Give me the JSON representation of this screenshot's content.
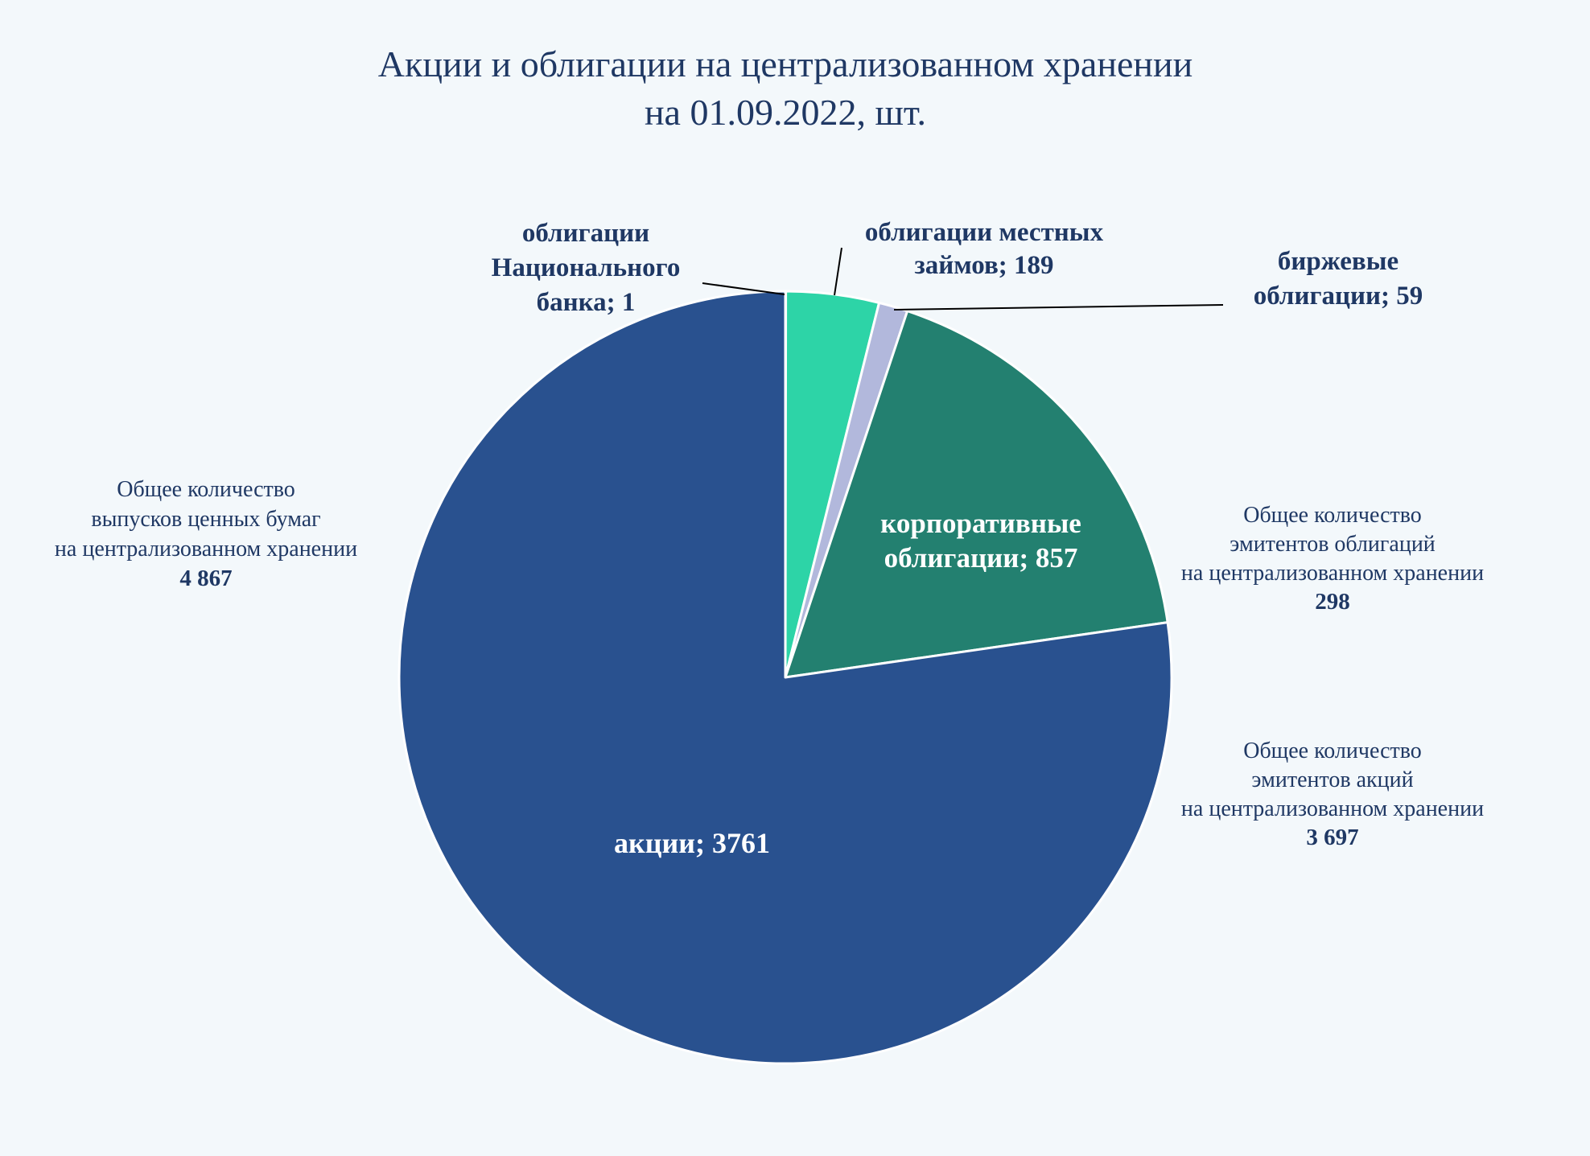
{
  "chart_data": {
    "type": "pie",
    "title_lines": [
      "Акции и облигации на централизованном хранении",
      "на 01.09.2022, шт."
    ],
    "slices": [
      {
        "key": "nb_bonds",
        "label_lines": [
          "облигации",
          "Национального",
          "банка; 1"
        ],
        "value": 1,
        "color": "#2dd4a7"
      },
      {
        "key": "local_bonds",
        "label_lines": [
          "облигации местных",
          "займов; 189"
        ],
        "value": 189,
        "color": "#2dd4a7"
      },
      {
        "key": "exchange_bonds",
        "label_lines": [
          "биржевые",
          "облигации; 59"
        ],
        "value": 59,
        "color": "#b2b8dc"
      },
      {
        "key": "corporate_bonds",
        "label_lines": [
          "корпоративные",
          "облигации; 857"
        ],
        "value": 857,
        "color": "#238070"
      },
      {
        "key": "shares",
        "label_lines": [
          "акции; 3761"
        ],
        "value": 3761,
        "color": "#29518f"
      }
    ],
    "annotations": [
      {
        "key": "total_issues",
        "lines": [
          "Общее количество",
          "выпусков ценных бумаг",
          "на централизованном хранении"
        ],
        "value": "4 867"
      },
      {
        "key": "bond_issuers",
        "lines": [
          "Общее количество",
          "эмитентов облигаций",
          "на централизованном хранении"
        ],
        "value": "298"
      },
      {
        "key": "share_issuers",
        "lines": [
          "Общее количество",
          "эмитентов акций",
          "на централизованном хранении"
        ],
        "value": "3 697"
      }
    ],
    "legend": "none",
    "colors": {
      "background": "#f3f8fb",
      "title": "#1f3864",
      "label_dark": "#1f3864",
      "label_light": "#ffffff",
      "slice_border": "#ffffff",
      "leader_line": "#000000"
    }
  }
}
